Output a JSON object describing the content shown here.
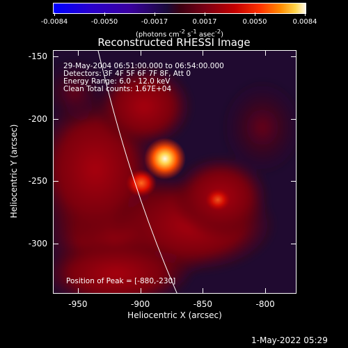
{
  "colorbar": {
    "ticks": [
      "-0.0084",
      "-0.0050",
      "-0.0017",
      "0.0017",
      "0.0050",
      "0.0084"
    ],
    "unit_html": "(photons cm<sup>-2</sup> s<sup>-1</sup> asec<sup>-2</sup>)"
  },
  "plot": {
    "title": "Reconstructed RHESSI Image",
    "annotations": [
      "29-May-2004 06:51:00.000 to 06:54:00.000",
      "Detectors: 3F 4F 5F 6F 7F 8F, Att 0",
      "Energy Range: 6.0 - 12.0 keV",
      "Clean     Total counts: 1.67E+04"
    ],
    "peak_text": "Position of Peak = [-880,-230]",
    "x_label": "Heliocentric X (arcsec)",
    "y_label": "Heliocentric Y (arcsec)",
    "x_ticks": [
      "-950",
      "-900",
      "-850",
      "-800"
    ],
    "y_ticks": [
      "-150",
      "-200",
      "-250",
      "-300"
    ],
    "x_range": [
      -970,
      -775
    ],
    "y_range": [
      -340,
      -145
    ],
    "limb_color": "#ffffff",
    "colors": {
      "peak": "#fff8e8",
      "source": "#ff3300",
      "background": "#1a0a3a"
    }
  },
  "footer": {
    "timestamp": "1-May-2022 05:29"
  }
}
